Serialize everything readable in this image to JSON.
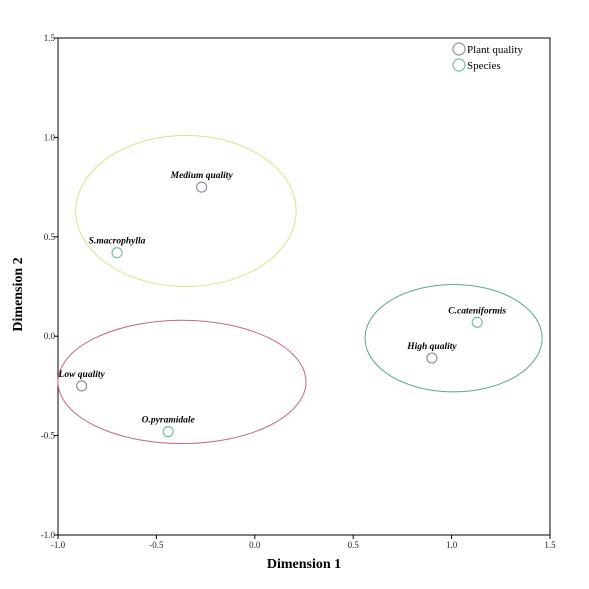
{
  "chart_data": {
    "type": "scatter",
    "xlabel": "Dimension 1",
    "ylabel": "Dimension 2",
    "xlim": [
      -1.0,
      1.5
    ],
    "ylim": [
      -1.0,
      1.5
    ],
    "x_ticks": [
      {
        "value": -1.0,
        "label": "-1.0"
      },
      {
        "value": -0.5,
        "label": "-0.5"
      },
      {
        "value": 0.0,
        "label": "0.0"
      },
      {
        "value": 0.5,
        "label": "0.5"
      },
      {
        "value": 1.0,
        "label": "1.0"
      },
      {
        "value": 1.5,
        "label": "1.5"
      }
    ],
    "y_ticks": [
      {
        "value": 1.5,
        "label": "1.5"
      },
      {
        "value": 1.0,
        "label": "1.0"
      },
      {
        "value": 0.5,
        "label": "0.5"
      },
      {
        "value": 0.0,
        "label": "0.0"
      },
      {
        "value": -0.5,
        "label": "-0.5"
      },
      {
        "value": -1.0,
        "label": "-1.0"
      }
    ],
    "grid": false,
    "legend_position": "top-right",
    "series": [
      {
        "name": "Plant quality",
        "color": "#8e8ea6",
        "points": [
          {
            "label": "Medium quality",
            "x": -0.27,
            "y": 0.75
          },
          {
            "label": "Low quality",
            "x": -0.88,
            "y": -0.25
          },
          {
            "label": "High quality",
            "x": 0.9,
            "y": -0.11
          }
        ]
      },
      {
        "name": "Species",
        "color": "#7fb8a6",
        "points": [
          {
            "label": "S.macrophylla",
            "x": -0.7,
            "y": 0.42
          },
          {
            "label": "O.pyramidale",
            "x": -0.44,
            "y": -0.48
          },
          {
            "label": "C.cateniformis",
            "x": 1.13,
            "y": 0.07
          }
        ]
      }
    ],
    "groupings": [
      {
        "cx": -0.35,
        "cy": 0.63,
        "rx": 0.56,
        "ry": 0.38,
        "color": "#e0e08a"
      },
      {
        "cx": -0.37,
        "cy": -0.23,
        "rx": 0.63,
        "ry": 0.31,
        "color": "#c46a7a"
      },
      {
        "cx": 1.01,
        "cy": -0.01,
        "rx": 0.45,
        "ry": 0.27,
        "color": "#5aa69a"
      }
    ]
  }
}
